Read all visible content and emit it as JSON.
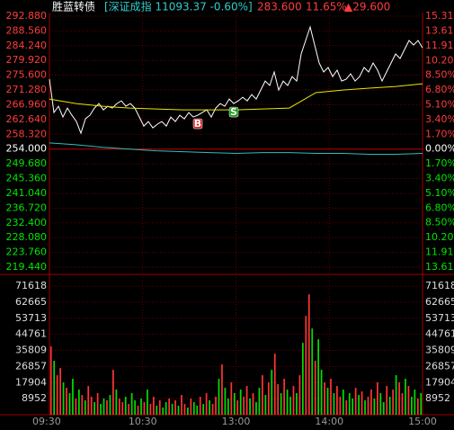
{
  "chart_data": [
    {
      "type": "line",
      "title": "胜蓝转债",
      "subtitle": "[深证成指 11093.37 -0.60%]",
      "header": [
        "283.600",
        "11.65%",
        "▲29.600"
      ],
      "ylim": [
        219.44,
        292.88
      ],
      "yticks": [
        {
          "value": 292.88,
          "label": "292.880"
        },
        {
          "value": 288.56,
          "label": "288.560"
        },
        {
          "value": 284.24,
          "label": "284.240"
        },
        {
          "value": 279.92,
          "label": "279.920"
        },
        {
          "value": 275.6,
          "label": "275.600"
        },
        {
          "value": 271.28,
          "label": "271.280"
        },
        {
          "value": 266.96,
          "label": "266.960"
        },
        {
          "value": 262.64,
          "label": "262.640"
        },
        {
          "value": 258.32,
          "label": "258.320"
        },
        {
          "value": 254,
          "label": "254.000"
        },
        {
          "value": 249.68,
          "label": "249.680"
        },
        {
          "value": 245.36,
          "label": "245.360"
        },
        {
          "value": 241.04,
          "label": "241.040"
        },
        {
          "value": 236.72,
          "label": "236.720"
        },
        {
          "value": 232.4,
          "label": "232.400"
        },
        {
          "value": 228.08,
          "label": "228.080"
        },
        {
          "value": 223.76,
          "label": "223.760"
        },
        {
          "value": 219.44,
          "label": "219.440"
        }
      ],
      "y2lim": [
        -13.61,
        15.31
      ],
      "y2ticks": [
        {
          "value": 15.31,
          "label": "15.31"
        },
        {
          "value": 13.61,
          "label": "13.61%"
        },
        {
          "value": 11.91,
          "label": "11.91%"
        },
        {
          "value": 10.2,
          "label": "10.20%"
        },
        {
          "value": 8.5,
          "label": "8.50%"
        },
        {
          "value": 6.8,
          "label": "6.80%"
        },
        {
          "value": 5.1,
          "label": "5.10%"
        },
        {
          "value": 3.4,
          "label": "3.40%"
        },
        {
          "value": 1.7,
          "label": "1.70%"
        },
        {
          "value": 0,
          "label": "0.00%"
        },
        {
          "value": -1.7,
          "label": "1.70%"
        },
        {
          "value": -3.4,
          "label": "3.40%"
        },
        {
          "value": -5.1,
          "label": "5.10%"
        },
        {
          "value": -6.8,
          "label": "6.80%"
        },
        {
          "value": -8.5,
          "label": "8.50%"
        },
        {
          "value": -10.2,
          "label": "10.20"
        },
        {
          "value": -11.91,
          "label": "11.91"
        },
        {
          "value": -13.61,
          "label": "13.61"
        }
      ],
      "up_color": "#ff3c3c",
      "down_color": "#00e600",
      "base_color": "#ffffff",
      "grid": true,
      "series": [
        {
          "color": "#ffffff",
          "values": [
            274.44,
            264.7,
            266.54,
            263.38,
            266.01,
            263.91,
            262.06,
            258.64,
            262.85,
            263.91,
            266.01,
            267.33,
            265.49,
            266.54,
            266.01,
            267.33,
            268.12,
            266.54,
            267.33,
            266.01,
            263.38,
            260.74,
            262.06,
            260.22,
            261.27,
            262.06,
            260.74,
            263.38,
            262.06,
            263.91,
            262.85,
            264.7,
            263.38,
            263.91,
            264.7,
            265.49,
            263.38,
            266.01,
            267.33,
            266.54,
            268.65,
            267.33,
            268.12,
            269.17,
            268.12,
            269.96,
            268.65,
            271.28,
            273.91,
            272.6,
            276.55,
            271.28,
            273.91,
            272.6,
            275.23,
            273.91,
            281.82,
            285.77,
            289.72,
            284.45,
            279.18,
            276.55,
            277.87,
            275.23,
            277.08,
            273.91,
            274.44,
            276.02,
            273.91,
            275.23,
            277.87,
            276.55,
            279.18,
            277.08,
            273.91,
            276.55,
            279.18,
            281.82,
            280.5,
            283.13,
            285.77,
            284.45,
            285.77,
            283.6
          ]
        },
        {
          "color": "#e8e800",
          "values": [
            268.65,
            267.33,
            266.54,
            266.01,
            265.75,
            265.49,
            265.49,
            265.49,
            265.75,
            266.01,
            270.5,
            271.28,
            271.81,
            272.33,
            273.12
          ]
        },
        {
          "color": "#33bbbb",
          "axis": "y2",
          "values": [
            0.7,
            0.5,
            0.2,
            0.0,
            -0.2,
            -0.3,
            -0.4,
            -0.5,
            -0.4,
            -0.4,
            -0.5,
            -0.5,
            -0.6,
            -0.6,
            -0.5
          ]
        }
      ],
      "trades": [
        {
          "text": "B",
          "point": 33,
          "color": "#d42020"
        },
        {
          "text": "S",
          "point": 41,
          "color": "#1a9a1a"
        }
      ]
    },
    {
      "type": "bar",
      "ylim": [
        0,
        71618
      ],
      "yticks": [
        71618,
        62665,
        53713,
        44761,
        35809,
        26857,
        17904,
        8952
      ],
      "xlim": [
        0,
        240
      ],
      "xticks": [
        {
          "value": 0,
          "label": "09:30"
        },
        {
          "value": 60,
          "label": "10:30"
        },
        {
          "value": 120,
          "label": "13:00"
        },
        {
          "value": 180,
          "label": "14:00"
        },
        {
          "value": 240,
          "label": "15:00"
        }
      ],
      "values": [
        38000,
        30000,
        22000,
        26000,
        18000,
        15000,
        12000,
        20000,
        9000,
        14000,
        11000,
        8000,
        16000,
        10000,
        7000,
        12000,
        6000,
        9000,
        8000,
        11000,
        25000,
        14000,
        9000,
        7000,
        10000,
        6000,
        12000,
        8000,
        5000,
        9000,
        7000,
        14000,
        6000,
        10000,
        5000,
        8000,
        4000,
        7000,
        9000,
        6000,
        8000,
        5000,
        11000,
        6000,
        4000,
        9000,
        7000,
        5000,
        10000,
        6000,
        12000,
        8000,
        6000,
        10000,
        20000,
        28000,
        15000,
        9000,
        18000,
        12000,
        8000,
        14000,
        10000,
        16000,
        9000,
        12000,
        7000,
        15000,
        22000,
        11000,
        18000,
        25000,
        34000,
        17000,
        12000,
        20000,
        14000,
        10000,
        16000,
        12000,
        22000,
        40000,
        55000,
        67000,
        48000,
        30000,
        42000,
        25000,
        18000,
        15000,
        20000,
        12000,
        16000,
        10000,
        14000,
        8000,
        12000,
        9000,
        15000,
        11000,
        13000,
        8000,
        10000,
        14000,
        9000,
        18000,
        12000,
        7000,
        16000,
        10000,
        14000,
        22000,
        18000,
        12000,
        20000,
        16000,
        10000,
        14000,
        9000,
        12000
      ],
      "bar_colors": [
        "#f33",
        "#0d0",
        "#f33",
        "#f33",
        "#0d0",
        "#f33",
        "#0d0",
        "#0d0",
        "#f33",
        "#0d0",
        "#f33",
        "#0d0",
        "#f33",
        "#f33",
        "#0d0",
        "#f33",
        "#0d0",
        "#0d0",
        "#f33",
        "#0d0",
        "#f33",
        "#0d0",
        "#f33",
        "#f33",
        "#0d0",
        "#f33",
        "#0d0",
        "#0d0",
        "#f33",
        "#0d0",
        "#f33",
        "#0d0",
        "#f33",
        "#f33",
        "#0d0",
        "#f33",
        "#0d0",
        "#0d0",
        "#f33",
        "#0d0",
        "#f33",
        "#0d0",
        "#f33",
        "#f33",
        "#0d0",
        "#f33",
        "#0d0",
        "#0d0",
        "#f33",
        "#0d0",
        "#f33",
        "#0d0",
        "#f33",
        "#f33",
        "#0d0",
        "#f33",
        "#0d0",
        "#0d0",
        "#f33",
        "#0d0",
        "#f33",
        "#0d0",
        "#f33",
        "#f33",
        "#0d0",
        "#f33",
        "#0d0",
        "#0d0",
        "#f33",
        "#0d0",
        "#f33",
        "#0d0",
        "#f33",
        "#f33",
        "#0d0",
        "#f33",
        "#0d0",
        "#0d0",
        "#f33",
        "#0d0",
        "#f33",
        "#0d0",
        "#f33",
        "#f33",
        "#0d0",
        "#f33",
        "#0d0",
        "#0d0",
        "#f33",
        "#0d0",
        "#f33",
        "#0d0",
        "#f33",
        "#f33",
        "#0d0",
        "#f33",
        "#0d0",
        "#0d0",
        "#f33",
        "#0d0",
        "#f33",
        "#0d0",
        "#f33",
        "#f33",
        "#0d0",
        "#f33",
        "#0d0",
        "#0d0",
        "#f33",
        "#0d0",
        "#f33",
        "#0d0",
        "#f33",
        "#f33",
        "#0d0",
        "#f33",
        "#0d0",
        "#0d0",
        "#f33",
        "#0d0"
      ],
      "label_color": "#dddddd",
      "time_color": "#999999"
    }
  ]
}
